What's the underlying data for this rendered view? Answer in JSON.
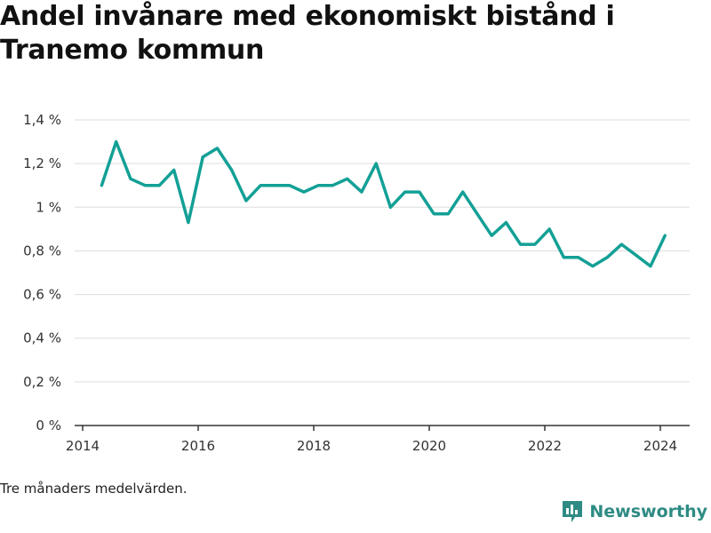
{
  "header": {
    "title": "Andel invånare med ekonomiskt bistånd i Tranemo kommun"
  },
  "caption": "Tre månaders medelvärden.",
  "brand": {
    "name": "Newsworthy",
    "icon": "bar-chart-logo-icon"
  },
  "colors": {
    "line": "#13a096",
    "grid": "#dddddd",
    "axis": "#333333",
    "brand": "#2e8b84"
  },
  "chart_data": {
    "type": "line",
    "title": "Andel invånare med ekonomiskt bistånd i Tranemo kommun",
    "xlabel": "",
    "ylabel": "",
    "ylim": [
      0,
      1.4
    ],
    "xlim": [
      2014.0,
      2024.5
    ],
    "grid": true,
    "x_ticks": [
      2014,
      2016,
      2018,
      2020,
      2022,
      2024
    ],
    "x_tick_labels": [
      "2014",
      "2016",
      "2018",
      "2020",
      "2022",
      "2024"
    ],
    "y_ticks": [
      0,
      0.2,
      0.4,
      0.6,
      0.8,
      1.0,
      1.2,
      1.4
    ],
    "y_tick_labels": [
      "0 %",
      "0,2 %",
      "0,4 %",
      "0,6 %",
      "0,8 %",
      "1 %",
      "1,2 %",
      "1,4 %"
    ],
    "series": [
      {
        "x": [
          2014.33,
          2014.58,
          2014.83,
          2015.08,
          2015.33,
          2015.58,
          2015.83,
          2016.08,
          2016.33,
          2016.58,
          2016.83,
          2017.08,
          2017.33,
          2017.58,
          2017.83,
          2018.08,
          2018.33,
          2018.58,
          2018.83,
          2019.08,
          2019.33,
          2019.58,
          2019.83,
          2020.08,
          2020.33,
          2020.58,
          2020.83,
          2021.08,
          2021.33,
          2021.58,
          2021.83,
          2022.08,
          2022.33,
          2022.58,
          2022.83,
          2023.08,
          2023.33,
          2023.58,
          2023.83,
          2024.08
        ],
        "values": [
          1.1,
          1.3,
          1.13,
          1.1,
          1.1,
          1.17,
          0.93,
          1.23,
          1.27,
          1.17,
          1.03,
          1.1,
          1.1,
          1.1,
          1.07,
          1.1,
          1.1,
          1.13,
          1.07,
          1.2,
          1.0,
          1.07,
          1.07,
          0.97,
          0.97,
          1.07,
          0.97,
          0.87,
          0.93,
          0.83,
          0.83,
          0.9,
          0.77,
          0.77,
          0.73,
          0.77,
          0.83,
          0.78,
          0.73,
          0.87
        ]
      }
    ]
  }
}
